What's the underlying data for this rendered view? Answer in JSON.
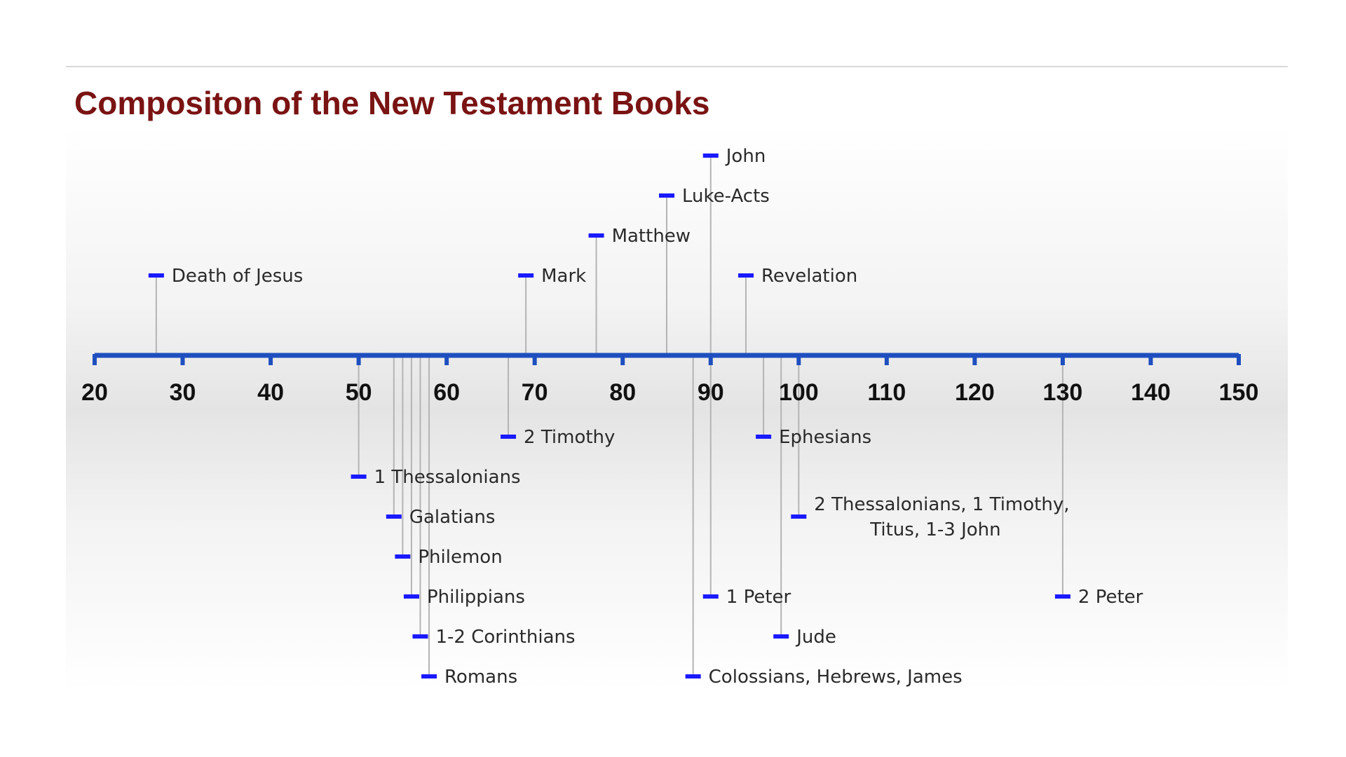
{
  "title": "Compositon of the New Testament Books",
  "colors": {
    "title": "#7a1313",
    "axis": "#1f4fbf",
    "marker": "#1a1aff",
    "connector": "#b4b4b4",
    "tick_label": "#111111",
    "event_label": "#2a2a2a"
  },
  "axis": {
    "min": 20,
    "max": 150,
    "ticks": [
      20,
      30,
      40,
      50,
      60,
      70,
      80,
      90,
      100,
      110,
      120,
      130,
      140,
      150
    ]
  },
  "events": [
    {
      "date": 27,
      "lines": [
        "Death of Jesus"
      ],
      "side": "above",
      "level": 4
    },
    {
      "date": 69,
      "lines": [
        "Mark"
      ],
      "side": "above",
      "level": 4
    },
    {
      "date": 77,
      "lines": [
        "Matthew"
      ],
      "side": "above",
      "level": 3
    },
    {
      "date": 85,
      "lines": [
        "Luke-Acts"
      ],
      "side": "above",
      "level": 2
    },
    {
      "date": 90,
      "lines": [
        "John"
      ],
      "side": "above",
      "level": 1
    },
    {
      "date": 94,
      "lines": [
        "Revelation"
      ],
      "side": "above",
      "level": 4
    },
    {
      "date": 67,
      "lines": [
        "2 Timothy"
      ],
      "side": "below",
      "level": 1
    },
    {
      "date": 96,
      "lines": [
        "Ephesians"
      ],
      "side": "below",
      "level": 1
    },
    {
      "date": 50,
      "lines": [
        "1 Thessalonians"
      ],
      "side": "below",
      "level": 2
    },
    {
      "date": 54,
      "lines": [
        "Galatians"
      ],
      "side": "below",
      "level": 3
    },
    {
      "date": 100,
      "lines": [
        "2 Thessalonians, 1 Timothy,",
        "Titus, 1-3 John"
      ],
      "side": "below",
      "level": 3
    },
    {
      "date": 55,
      "lines": [
        "Philemon"
      ],
      "side": "below",
      "level": 4
    },
    {
      "date": 56,
      "lines": [
        "Philippians"
      ],
      "side": "below",
      "level": 5
    },
    {
      "date": 90,
      "lines": [
        "1 Peter"
      ],
      "side": "below",
      "level": 5
    },
    {
      "date": 130,
      "lines": [
        "2 Peter"
      ],
      "side": "below",
      "level": 5
    },
    {
      "date": 57,
      "lines": [
        "1-2 Corinthians"
      ],
      "side": "below",
      "level": 6
    },
    {
      "date": 98,
      "lines": [
        "Jude"
      ],
      "side": "below",
      "level": 6
    },
    {
      "date": 58,
      "lines": [
        "Romans"
      ],
      "side": "below",
      "level": 7
    },
    {
      "date": 88,
      "lines": [
        "Colossians, Hebrews, James"
      ],
      "side": "below",
      "level": 7
    }
  ]
}
